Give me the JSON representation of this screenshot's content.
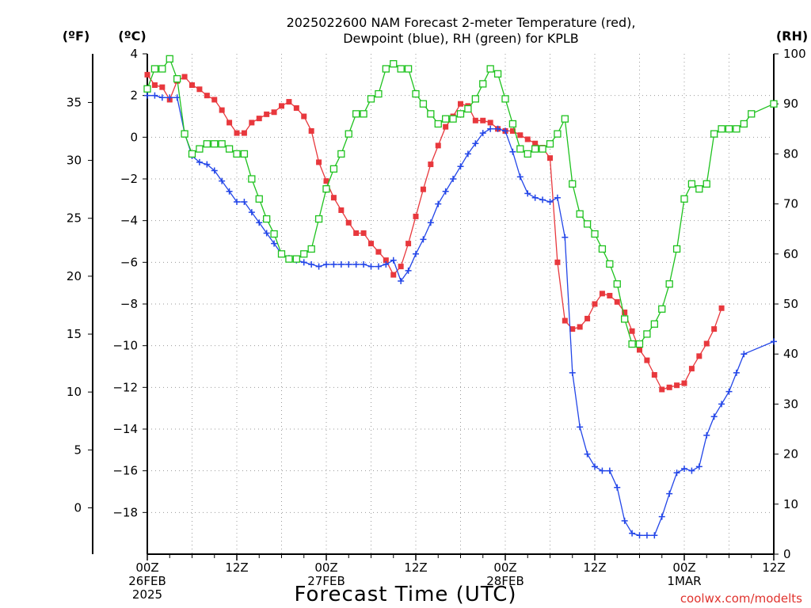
{
  "title_lines": [
    "2025022600 NAM Forecast 2-meter Temperature (red),",
    "Dewpoint (blue), RH (green) for KPLB"
  ],
  "axis_headers": {
    "fahrenheit": "(ºF)",
    "celsius": "(ºC)",
    "rh": "(RH)"
  },
  "xlabel": "Forecast Time (UTC)",
  "credit": "coolwx.com/modelts",
  "colors": {
    "temperature": "#e8383d",
    "dewpoint": "#2346e8",
    "rh": "#1ec21e",
    "grid": "#9a9a9a"
  },
  "chart_data": {
    "type": "line",
    "x_unit": "forecast hour from 2025-02-26 00Z",
    "xlim": [
      0,
      84
    ],
    "x_ticks": [
      {
        "hour": 0,
        "lines": [
          "00Z",
          "26FEB",
          "2025"
        ]
      },
      {
        "hour": 12,
        "lines": [
          "12Z"
        ]
      },
      {
        "hour": 24,
        "lines": [
          "00Z",
          "27FEB"
        ]
      },
      {
        "hour": 36,
        "lines": [
          "12Z"
        ]
      },
      {
        "hour": 48,
        "lines": [
          "00Z",
          "28FEB"
        ]
      },
      {
        "hour": 60,
        "lines": [
          "12Z"
        ]
      },
      {
        "hour": 72,
        "lines": [
          "00Z",
          "1MAR"
        ]
      },
      {
        "hour": 84,
        "lines": [
          "12Z"
        ]
      }
    ],
    "celsius_axis": {
      "lim": [
        -20,
        4
      ],
      "ticks": [
        4,
        2,
        0,
        -2,
        -4,
        -6,
        -8,
        -10,
        -12,
        -14,
        -16,
        -18
      ]
    },
    "fahrenheit_axis": {
      "lim": [
        -4,
        39.2
      ],
      "ticks": [
        35,
        30,
        25,
        20,
        15,
        10,
        5,
        0
      ]
    },
    "rh_axis": {
      "lim": [
        0,
        100
      ],
      "ticks": [
        100,
        90,
        80,
        70,
        60,
        50,
        40,
        30,
        20,
        10,
        0
      ]
    },
    "grid": true,
    "series": [
      {
        "key": "temperature",
        "units": "C",
        "marker": "filled-square",
        "points": [
          [
            0,
            3.0
          ],
          [
            1,
            2.5
          ],
          [
            2,
            2.4
          ],
          [
            3,
            1.8
          ],
          [
            4,
            2.7
          ],
          [
            5,
            2.9
          ],
          [
            6,
            2.5
          ],
          [
            7,
            2.3
          ],
          [
            8,
            2.0
          ],
          [
            9,
            1.8
          ],
          [
            10,
            1.3
          ],
          [
            11,
            0.7
          ],
          [
            12,
            0.2
          ],
          [
            13,
            0.2
          ],
          [
            14,
            0.7
          ],
          [
            15,
            0.9
          ],
          [
            16,
            1.1
          ],
          [
            17,
            1.2
          ],
          [
            18,
            1.5
          ],
          [
            19,
            1.7
          ],
          [
            20,
            1.4
          ],
          [
            21,
            1.0
          ],
          [
            22,
            0.3
          ],
          [
            23,
            -1.2
          ],
          [
            24,
            -2.1
          ],
          [
            25,
            -2.9
          ],
          [
            26,
            -3.5
          ],
          [
            27,
            -4.1
          ],
          [
            28,
            -4.6
          ],
          [
            29,
            -4.6
          ],
          [
            30,
            -5.1
          ],
          [
            31,
            -5.5
          ],
          [
            32,
            -5.9
          ],
          [
            33,
            -6.6
          ],
          [
            34,
            -6.2
          ],
          [
            35,
            -5.1
          ],
          [
            36,
            -3.8
          ],
          [
            37,
            -2.5
          ],
          [
            38,
            -1.3
          ],
          [
            39,
            -0.4
          ],
          [
            40,
            0.5
          ],
          [
            41,
            1.0
          ],
          [
            42,
            1.6
          ],
          [
            43,
            1.5
          ],
          [
            44,
            0.8
          ],
          [
            45,
            0.8
          ],
          [
            46,
            0.7
          ],
          [
            47,
            0.4
          ],
          [
            48,
            0.3
          ],
          [
            49,
            0.3
          ],
          [
            50,
            0.1
          ],
          [
            51,
            -0.1
          ],
          [
            52,
            -0.3
          ],
          [
            53,
            -0.5
          ],
          [
            54,
            -1.0
          ],
          [
            55,
            -6.0
          ],
          [
            56,
            -8.8
          ],
          [
            57,
            -9.2
          ],
          [
            58,
            -9.1
          ],
          [
            59,
            -8.7
          ],
          [
            60,
            -8.0
          ],
          [
            61,
            -7.5
          ],
          [
            62,
            -7.6
          ],
          [
            63,
            -7.9
          ],
          [
            64,
            -8.4
          ],
          [
            65,
            -9.3
          ],
          [
            66,
            -10.2
          ],
          [
            67,
            -10.7
          ],
          [
            68,
            -11.4
          ],
          [
            69,
            -12.1
          ],
          [
            70,
            -12.0
          ],
          [
            71,
            -11.9
          ],
          [
            72,
            -11.8
          ],
          [
            73,
            -11.1
          ],
          [
            74,
            -10.5
          ],
          [
            75,
            -9.9
          ],
          [
            76,
            -9.2
          ],
          [
            77,
            -8.2
          ]
        ]
      },
      {
        "key": "dewpoint",
        "units": "C",
        "marker": "plus",
        "points": [
          [
            0,
            2.0
          ],
          [
            1,
            2.0
          ],
          [
            2,
            1.9
          ],
          [
            3,
            1.9
          ],
          [
            4,
            1.9
          ],
          [
            5,
            0.2
          ],
          [
            6,
            -0.9
          ],
          [
            7,
            -1.2
          ],
          [
            8,
            -1.3
          ],
          [
            9,
            -1.6
          ],
          [
            10,
            -2.1
          ],
          [
            11,
            -2.6
          ],
          [
            12,
            -3.1
          ],
          [
            13,
            -3.1
          ],
          [
            14,
            -3.6
          ],
          [
            15,
            -4.1
          ],
          [
            16,
            -4.6
          ],
          [
            17,
            -5.1
          ],
          [
            18,
            -5.6
          ],
          [
            19,
            -5.8
          ],
          [
            20,
            -5.9
          ],
          [
            21,
            -6.0
          ],
          [
            22,
            -6.1
          ],
          [
            23,
            -6.2
          ],
          [
            24,
            -6.1
          ],
          [
            25,
            -6.1
          ],
          [
            26,
            -6.1
          ],
          [
            27,
            -6.1
          ],
          [
            28,
            -6.1
          ],
          [
            29,
            -6.1
          ],
          [
            30,
            -6.2
          ],
          [
            31,
            -6.2
          ],
          [
            32,
            -6.1
          ],
          [
            33,
            -5.9
          ],
          [
            34,
            -6.9
          ],
          [
            35,
            -6.4
          ],
          [
            36,
            -5.6
          ],
          [
            37,
            -4.9
          ],
          [
            38,
            -4.1
          ],
          [
            39,
            -3.2
          ],
          [
            40,
            -2.6
          ],
          [
            41,
            -2.0
          ],
          [
            42,
            -1.4
          ],
          [
            43,
            -0.8
          ],
          [
            44,
            -0.3
          ],
          [
            45,
            0.2
          ],
          [
            46,
            0.4
          ],
          [
            47,
            0.4
          ],
          [
            48,
            0.3
          ],
          [
            49,
            -0.7
          ],
          [
            50,
            -1.9
          ],
          [
            51,
            -2.7
          ],
          [
            52,
            -2.9
          ],
          [
            53,
            -3.0
          ],
          [
            54,
            -3.1
          ],
          [
            55,
            -2.9
          ],
          [
            56,
            -4.8
          ],
          [
            57,
            -11.3
          ],
          [
            58,
            -13.9
          ],
          [
            59,
            -15.2
          ],
          [
            60,
            -15.8
          ],
          [
            61,
            -16.0
          ],
          [
            62,
            -16.0
          ],
          [
            63,
            -16.8
          ],
          [
            64,
            -18.4
          ],
          [
            65,
            -19.0
          ],
          [
            66,
            -19.1
          ],
          [
            67,
            -19.1
          ],
          [
            68,
            -19.1
          ],
          [
            69,
            -18.2
          ],
          [
            70,
            -17.1
          ],
          [
            71,
            -16.1
          ],
          [
            72,
            -15.9
          ],
          [
            73,
            -16.0
          ],
          [
            74,
            -15.8
          ],
          [
            75,
            -14.3
          ],
          [
            76,
            -13.4
          ],
          [
            77,
            -12.8
          ],
          [
            78,
            -12.2
          ],
          [
            79,
            -11.3
          ],
          [
            80,
            -10.4
          ],
          [
            84,
            -9.8
          ]
        ]
      },
      {
        "key": "rh",
        "units": "%",
        "marker": "open-square",
        "points": [
          [
            0,
            93
          ],
          [
            1,
            97
          ],
          [
            2,
            97
          ],
          [
            3,
            99
          ],
          [
            4,
            95
          ],
          [
            5,
            84
          ],
          [
            6,
            80
          ],
          [
            7,
            81
          ],
          [
            8,
            82
          ],
          [
            9,
            82
          ],
          [
            10,
            82
          ],
          [
            11,
            81
          ],
          [
            12,
            80
          ],
          [
            13,
            80
          ],
          [
            14,
            75
          ],
          [
            15,
            71
          ],
          [
            16,
            67
          ],
          [
            17,
            64
          ],
          [
            18,
            60
          ],
          [
            19,
            59
          ],
          [
            20,
            59
          ],
          [
            21,
            60
          ],
          [
            22,
            61
          ],
          [
            23,
            67
          ],
          [
            24,
            73
          ],
          [
            25,
            77
          ],
          [
            26,
            80
          ],
          [
            27,
            84
          ],
          [
            28,
            88
          ],
          [
            29,
            88
          ],
          [
            30,
            91
          ],
          [
            31,
            92
          ],
          [
            32,
            97
          ],
          [
            33,
            98
          ],
          [
            34,
            97
          ],
          [
            35,
            97
          ],
          [
            36,
            92
          ],
          [
            37,
            90
          ],
          [
            38,
            88
          ],
          [
            39,
            86
          ],
          [
            40,
            87
          ],
          [
            41,
            87
          ],
          [
            42,
            88
          ],
          [
            43,
            89
          ],
          [
            44,
            91
          ],
          [
            45,
            94
          ],
          [
            46,
            97
          ],
          [
            47,
            96
          ],
          [
            48,
            91
          ],
          [
            49,
            86
          ],
          [
            50,
            81
          ],
          [
            51,
            80
          ],
          [
            52,
            81
          ],
          [
            53,
            81
          ],
          [
            54,
            82
          ],
          [
            55,
            84
          ],
          [
            56,
            87
          ],
          [
            57,
            74
          ],
          [
            58,
            68
          ],
          [
            59,
            66
          ],
          [
            60,
            64
          ],
          [
            61,
            61
          ],
          [
            62,
            58
          ],
          [
            63,
            54
          ],
          [
            64,
            47
          ],
          [
            65,
            42
          ],
          [
            66,
            42
          ],
          [
            67,
            44
          ],
          [
            68,
            46
          ],
          [
            69,
            49
          ],
          [
            70,
            54
          ],
          [
            71,
            61
          ],
          [
            72,
            71
          ],
          [
            73,
            74
          ],
          [
            74,
            73
          ],
          [
            75,
            74
          ],
          [
            76,
            84
          ],
          [
            77,
            85
          ],
          [
            78,
            85
          ],
          [
            79,
            85
          ],
          [
            80,
            86
          ],
          [
            81,
            88
          ],
          [
            84,
            90
          ]
        ]
      }
    ]
  }
}
